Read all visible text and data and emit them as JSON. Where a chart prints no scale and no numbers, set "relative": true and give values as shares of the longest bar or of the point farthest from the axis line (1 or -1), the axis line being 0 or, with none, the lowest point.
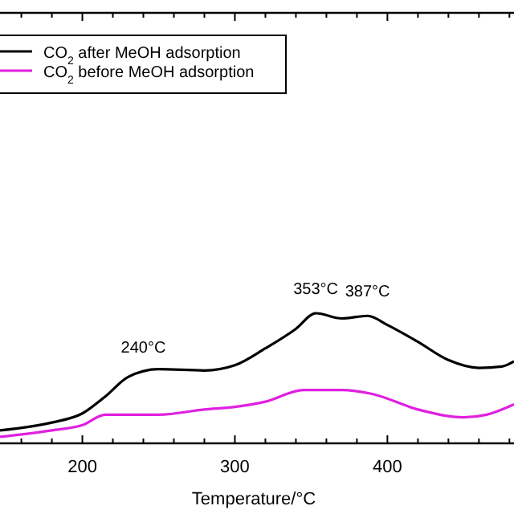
{
  "chart_data": {
    "type": "line",
    "relative": true,
    "xlabel": "Temperature/°C",
    "xlim": [
      146,
      483
    ],
    "xticks": [
      {
        "value": 160,
        "label": null
      },
      {
        "value": 180,
        "label": null
      },
      200,
      {
        "value": 220,
        "label": null
      },
      {
        "value": 240,
        "label": null
      },
      {
        "value": 260,
        "label": null
      },
      {
        "value": 280,
        "label": null
      },
      300,
      {
        "value": 320,
        "label": null
      },
      {
        "value": 340,
        "label": null
      },
      {
        "value": 360,
        "label": null
      },
      {
        "value": 380,
        "label": null
      },
      400,
      {
        "value": 420,
        "label": null
      },
      {
        "value": 440,
        "label": null
      },
      {
        "value": 460,
        "label": null
      },
      {
        "value": 480,
        "label": null
      }
    ],
    "legend": "top left",
    "grid": false,
    "series": [
      {
        "name": "CO$_{2}$ after MeOH adsorption",
        "color": "#000000",
        "x": [
          146,
          180,
          200,
          215,
          230,
          250,
          280,
          300,
          320,
          340,
          353,
          370,
          387,
          400,
          420,
          440,
          460,
          475,
          483
        ],
        "values": [
          0.1,
          0.16,
          0.23,
          0.36,
          0.51,
          0.57,
          0.56,
          0.6,
          0.73,
          0.88,
          1.0,
          0.96,
          0.98,
          0.91,
          0.78,
          0.64,
          0.58,
          0.59,
          0.63
        ]
      },
      {
        "name": "CO$_{2}$ before MeOH adsorption",
        "color": "#e020e0",
        "x": [
          146,
          180,
          200,
          215,
          250,
          280,
          300,
          320,
          345,
          370,
          390,
          420,
          450,
          465,
          483
        ],
        "values": [
          0.05,
          0.1,
          0.14,
          0.22,
          0.22,
          0.26,
          0.28,
          0.32,
          0.41,
          0.41,
          0.38,
          0.26,
          0.2,
          0.22,
          0.3
        ]
      }
    ],
    "annotations": [
      {
        "text": "240°C",
        "x": 240,
        "y": 0.55
      },
      {
        "text": "353°C",
        "x": 353,
        "y": 1.0
      },
      {
        "text": "387°C",
        "x": 387,
        "y": 0.98
      }
    ]
  }
}
